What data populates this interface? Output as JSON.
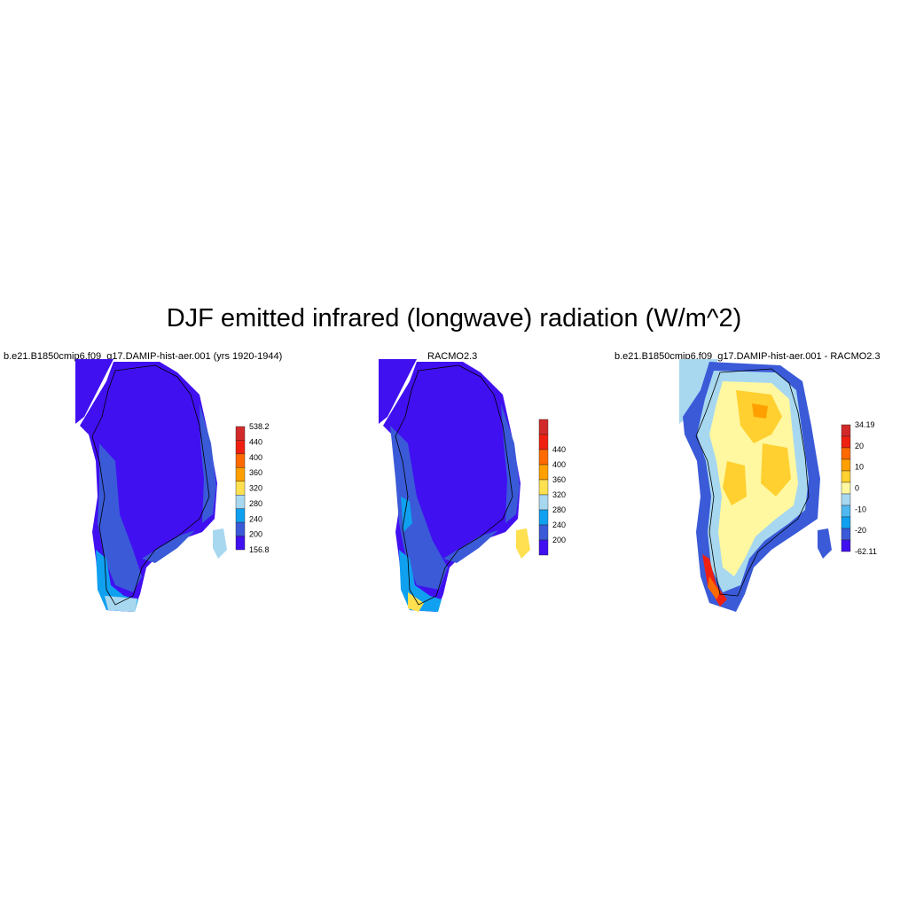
{
  "figure": {
    "title": "DJF emitted infrared (longwave) radiation (W/m^2)"
  },
  "panels": [
    {
      "title": "b.e21.B1850cmip6.f09_g17.DAMIP-hist-aer.001 (yrs 1920-1944)",
      "colorbar": {
        "labels": [
          "538.2",
          "440",
          "400",
          "360",
          "320",
          "280",
          "240",
          "200",
          "156.8"
        ],
        "colors": [
          "#d22a2a",
          "#f02010",
          "#ff6a00",
          "#ffa000",
          "#ffe050",
          "#a8d8f0",
          "#10a0f0",
          "#3a5ad8",
          "#4010f0"
        ]
      }
    },
    {
      "title": "RACMO2.3",
      "colorbar": {
        "labels": [
          "440",
          "400",
          "360",
          "320",
          "280",
          "240",
          "200"
        ],
        "colors": [
          "#d22a2a",
          "#f02010",
          "#ff6a00",
          "#ffa000",
          "#ffe050",
          "#a8d8f0",
          "#10a0f0",
          "#3a5ad8",
          "#4010f0"
        ]
      }
    },
    {
      "title": "b.e21.B1850cmip6.f09_g17.DAMIP-hist-aer.001 - RACMO2.3",
      "colorbar": {
        "labels": [
          "34.19",
          "20",
          "10",
          "0",
          "-10",
          "-20",
          "-62.11"
        ],
        "colors": [
          "#d22a2a",
          "#f02010",
          "#ff6a00",
          "#ffa000",
          "#ffd030",
          "#fff8a0",
          "#a8d8f0",
          "#50b8f0",
          "#10a0f0",
          "#3a5ad8",
          "#4010f0"
        ]
      }
    }
  ]
}
